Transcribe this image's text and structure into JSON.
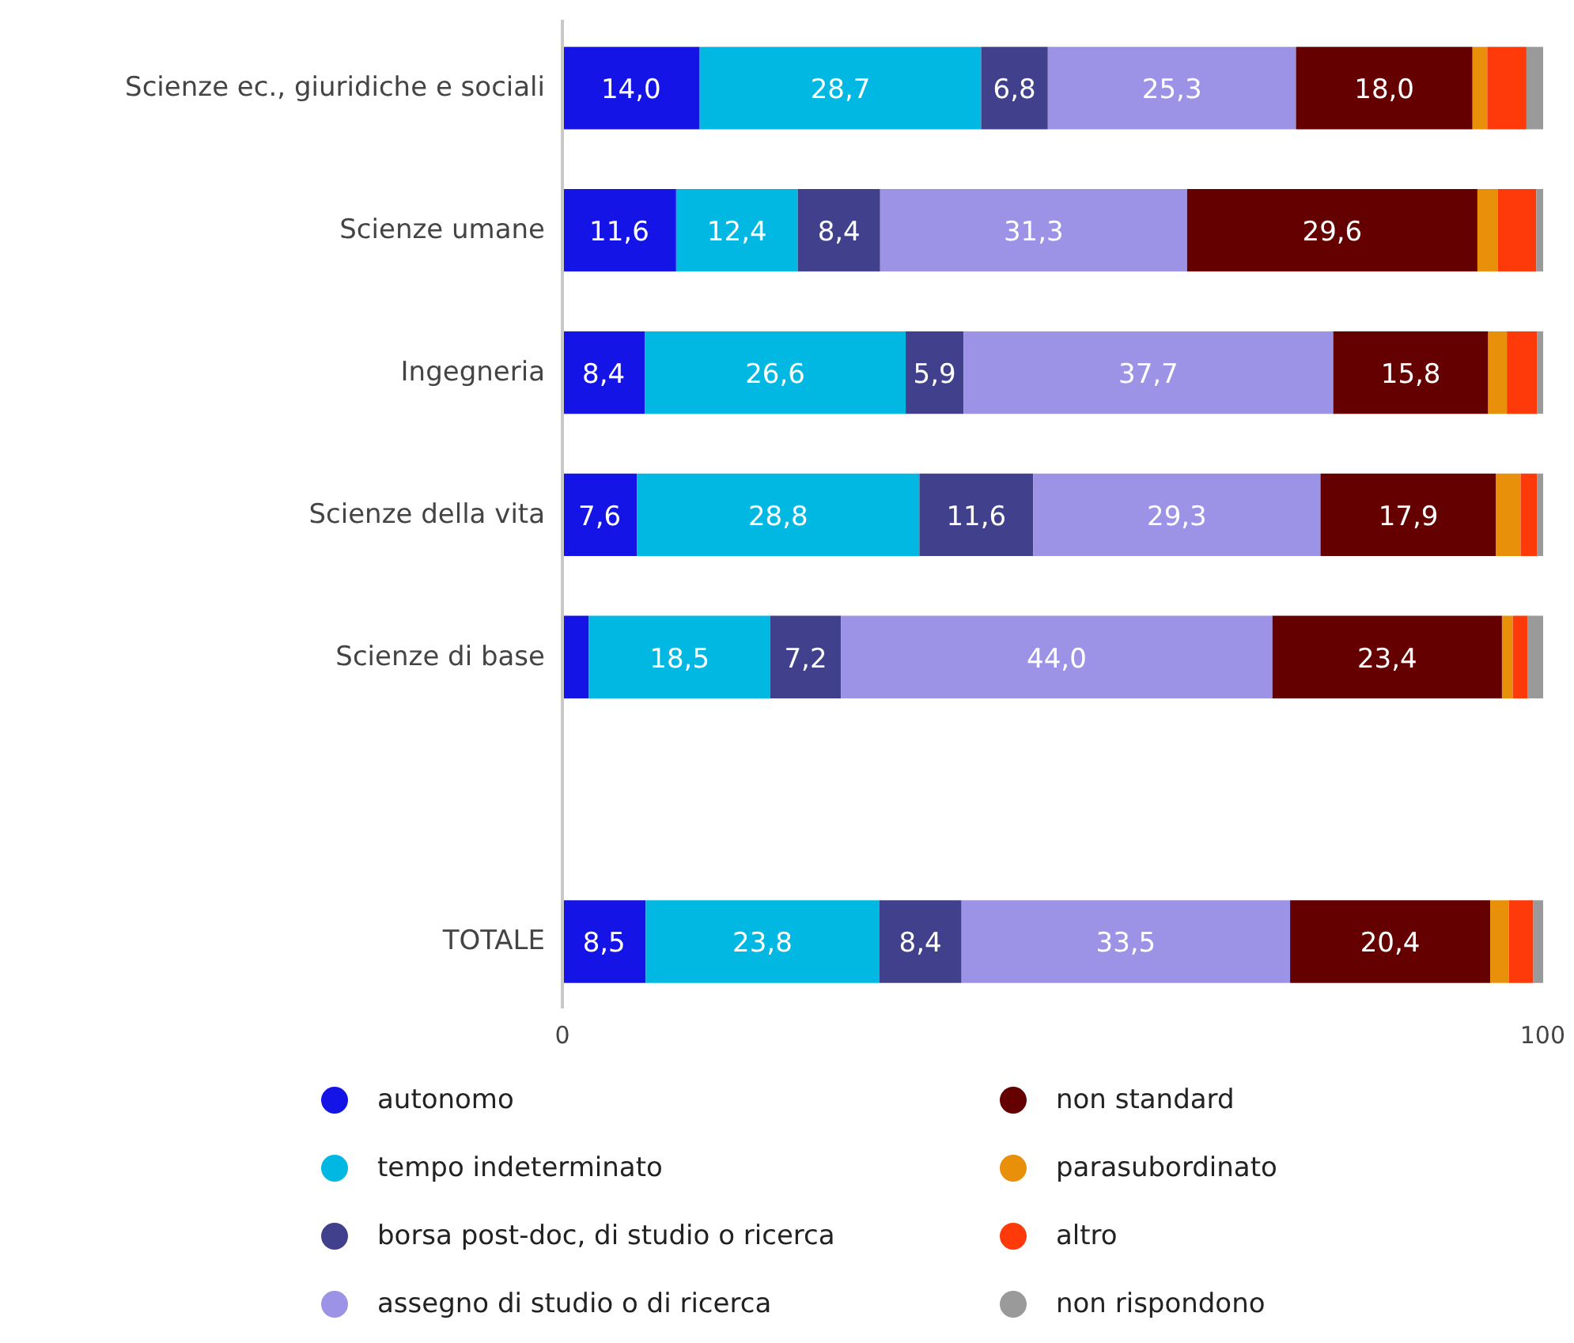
{
  "chart_data": {
    "type": "bar",
    "orientation": "horizontal",
    "stacked": true,
    "categories": [
      "Scienze ec., giuridiche e sociali",
      "Scienze umane",
      "Ingegneria",
      "Scienze della vita",
      "Scienze di base",
      null,
      "TOTALE"
    ],
    "xlim": [
      0,
      100
    ],
    "xticks": [
      0,
      100
    ],
    "grid": false,
    "legend": "bottom",
    "series": [
      {
        "name": "autonomo",
        "color": "#1414e6",
        "values": [
          14.0,
          11.6,
          8.4,
          7.6,
          2.7,
          null,
          8.5
        ],
        "value_labels": [
          "14,0",
          "11,6",
          "8,4",
          "7,6",
          null,
          null,
          "8,5"
        ]
      },
      {
        "name": "tempo indeterminato",
        "color": "#00b8e2",
        "values": [
          28.7,
          12.4,
          26.6,
          28.8,
          18.5,
          null,
          23.8
        ],
        "value_labels": [
          "28,7",
          "12,4",
          "26,6",
          "28,8",
          "18,5",
          null,
          "23,8"
        ]
      },
      {
        "name": "borsa post-doc, di studio o ricerca",
        "color": "#40408c",
        "values": [
          6.8,
          8.4,
          5.9,
          11.6,
          7.2,
          null,
          8.4
        ],
        "value_labels": [
          "6,8",
          "8,4",
          "5,9",
          "11,6",
          "7,2",
          null,
          "8,4"
        ]
      },
      {
        "name": "assegno di studio o di ricerca",
        "color": "#9c92e6",
        "values": [
          25.3,
          31.3,
          37.7,
          29.3,
          44.0,
          null,
          33.5
        ],
        "value_labels": [
          "25,3",
          "31,3",
          "37,7",
          "29,3",
          "44,0",
          null,
          "33,5"
        ]
      },
      {
        "name": "non standard",
        "color": "#640000",
        "values": [
          18.0,
          29.6,
          15.8,
          17.9,
          23.4,
          null,
          20.4
        ],
        "value_labels": [
          "18,0",
          "29,6",
          "15,8",
          "17,9",
          "23,4",
          null,
          "20,4"
        ]
      },
      {
        "name": "parasubordinato",
        "color": "#e8900a",
        "values": [
          1.5,
          2.1,
          1.9,
          2.5,
          1.1,
          null,
          1.9
        ],
        "value_labels": [
          null,
          null,
          null,
          null,
          null,
          null,
          null
        ]
      },
      {
        "name": "altro",
        "color": "#ff3a0a",
        "values": [
          4.0,
          3.9,
          3.1,
          1.7,
          1.5,
          null,
          2.5
        ],
        "value_labels": [
          null,
          null,
          null,
          null,
          null,
          null,
          null
        ]
      },
      {
        "name": "non rispondono",
        "color": "#9a9a9a",
        "values": [
          1.7,
          0.7,
          0.6,
          0.6,
          1.6,
          null,
          1.0
        ],
        "value_labels": [
          null,
          null,
          null,
          null,
          null,
          null,
          null
        ]
      }
    ]
  }
}
